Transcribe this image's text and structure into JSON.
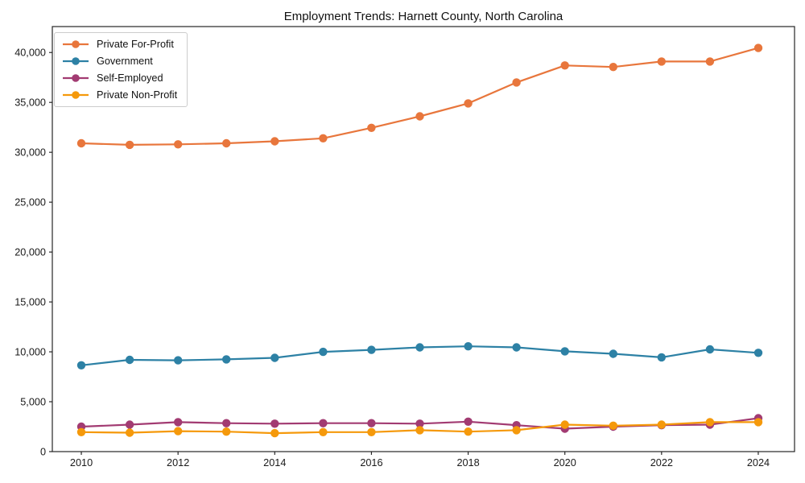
{
  "window": {
    "title": "Employment Trends: Harnett County, North Carolina"
  },
  "chart_data": {
    "type": "line",
    "title": "Employment Trends: Harnett County, North Carolina",
    "xlabel": "",
    "ylabel": "",
    "x": [
      2010,
      2011,
      2012,
      2013,
      2014,
      2015,
      2016,
      2017,
      2018,
      2019,
      2020,
      2021,
      2022,
      2023,
      2024
    ],
    "series": [
      {
        "name": "Private For-Profit",
        "color": "#e8763c",
        "values": [
          30900,
          30750,
          30800,
          30900,
          31100,
          31400,
          32450,
          33600,
          34900,
          37000,
          38700,
          38550,
          39100,
          39100,
          40450
        ]
      },
      {
        "name": "Government",
        "color": "#2d81a5",
        "values": [
          8650,
          9200,
          9150,
          9250,
          9400,
          10000,
          10200,
          10450,
          10550,
          10450,
          10050,
          9800,
          9450,
          10250,
          9900
        ]
      },
      {
        "name": "Self-Employed",
        "color": "#a23b72",
        "values": [
          2500,
          2700,
          2950,
          2850,
          2800,
          2850,
          2850,
          2800,
          3000,
          2650,
          2300,
          2500,
          2650,
          2700,
          3350
        ]
      },
      {
        "name": "Private Non-Profit",
        "color": "#f5990b",
        "values": [
          1950,
          1900,
          2050,
          2000,
          1850,
          1950,
          1950,
          2150,
          2000,
          2150,
          2700,
          2600,
          2700,
          2950,
          2950
        ]
      }
    ],
    "xticks": [
      2010,
      2012,
      2014,
      2016,
      2018,
      2020,
      2022,
      2024
    ],
    "xtick_labels": [
      "2010",
      "2012",
      "2014",
      "2016",
      "2018",
      "2020",
      "2022",
      "2024"
    ],
    "yticks": [
      0,
      5000,
      10000,
      15000,
      20000,
      25000,
      30000,
      35000,
      40000
    ],
    "ytick_labels": [
      "0",
      "5,000",
      "10,000",
      "15,000",
      "20,000",
      "25,000",
      "30,000",
      "35,000",
      "40,000"
    ],
    "xlim": [
      2009.4,
      2024.75
    ],
    "ylim": [
      0,
      42600
    ],
    "grid": false,
    "legend_position": "upper-left",
    "marker": "circle",
    "frame_color": "#262626"
  }
}
